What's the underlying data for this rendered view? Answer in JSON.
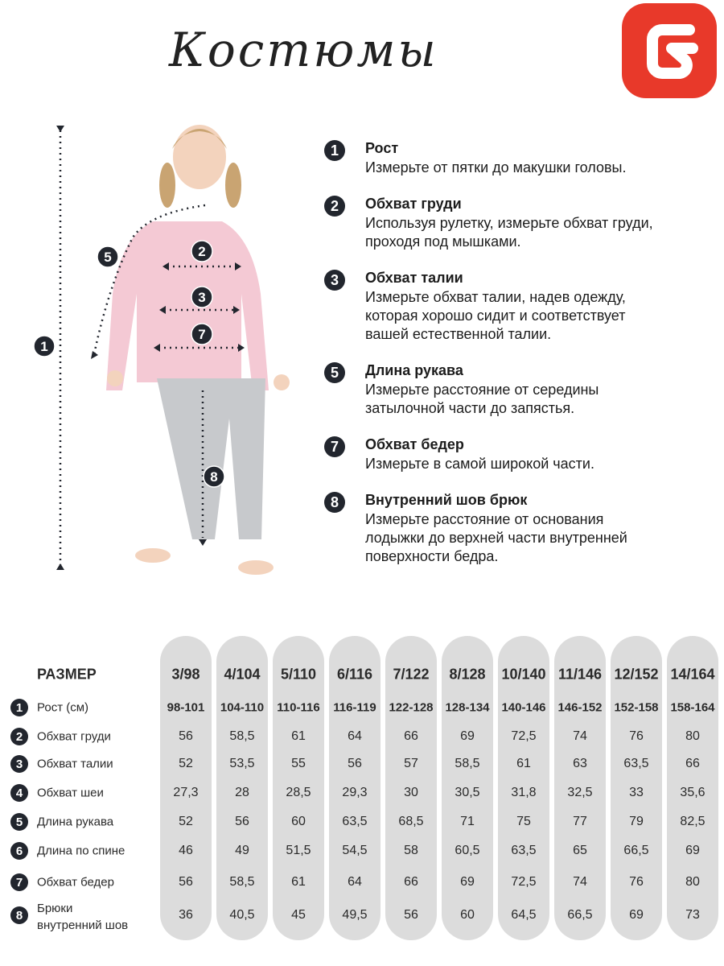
{
  "title": "Костюмы",
  "colors": {
    "brand": "#e8392a",
    "dark": "#22262e",
    "pill": "#dcdcdc",
    "shirt": "#f4c9d4",
    "pants": "#c7c9cc"
  },
  "figure_markers": [
    "1",
    "2",
    "3",
    "5",
    "7",
    "8"
  ],
  "instructions": [
    {
      "num": "1",
      "title": "Рост",
      "desc": "Измерьте от пятки до макушки головы."
    },
    {
      "num": "2",
      "title": "Обхват груди",
      "desc": "Используя рулетку, измерьте обхват груди,\nпроходя под мышками."
    },
    {
      "num": "3",
      "title": "Обхват талии",
      "desc": "Измерьте обхват талии, надев одежду,\nкоторая хорошо сидит и соответствует\nвашей естественной талии."
    },
    {
      "num": "5",
      "title": "Длина рукава",
      "desc": "Измерьте расстояние от середины\nзатылочной части до запястья."
    },
    {
      "num": "7",
      "title": "Обхват бедер",
      "desc": "Измерьте в самой широкой части."
    },
    {
      "num": "8",
      "title": "Внутренний шов брюк",
      "desc": "Измерьте расстояние от основания\nлодыжки до верхней части внутренней\nповерхности бедра."
    }
  ],
  "table": {
    "header_label": "РАЗМЕР",
    "sizes": [
      "3/98",
      "4/104",
      "5/110",
      "6/116",
      "7/122",
      "8/128",
      "10/140",
      "11/146",
      "12/152",
      "14/164"
    ],
    "rows": [
      {
        "num": "1",
        "label": "Рост (см)",
        "values": [
          "98-101",
          "104-110",
          "110-116",
          "116-119",
          "122-128",
          "128-134",
          "140-146",
          "146-152",
          "152-158",
          "158-164"
        ]
      },
      {
        "num": "2",
        "label": "Обхват груди",
        "values": [
          "56",
          "58,5",
          "61",
          "64",
          "66",
          "69",
          "72,5",
          "74",
          "76",
          "80"
        ]
      },
      {
        "num": "3",
        "label": "Обхват талии",
        "values": [
          "52",
          "53,5",
          "55",
          "56",
          "57",
          "58,5",
          "61",
          "63",
          "63,5",
          "66"
        ]
      },
      {
        "num": "4",
        "label": "Обхват шеи",
        "values": [
          "27,3",
          "28",
          "28,5",
          "29,3",
          "30",
          "30,5",
          "31,8",
          "32,5",
          "33",
          "35,6"
        ]
      },
      {
        "num": "5",
        "label": "Длина рукава",
        "values": [
          "52",
          "56",
          "60",
          "63,5",
          "68,5",
          "71",
          "75",
          "77",
          "79",
          "82,5"
        ]
      },
      {
        "num": "6",
        "label": "Длина по спине",
        "values": [
          "46",
          "49",
          "51,5",
          "54,5",
          "58",
          "60,5",
          "63,5",
          "65",
          "66,5",
          "69"
        ]
      },
      {
        "num": "7",
        "label": "Обхват бедер",
        "values": [
          "56",
          "58,5",
          "61",
          "64",
          "66",
          "69",
          "72,5",
          "74",
          "76",
          "80"
        ]
      },
      {
        "num": "8",
        "label": "Брюки\nвнутренний шов",
        "values": [
          "36",
          "40,5",
          "45",
          "49,5",
          "56",
          "60",
          "64,5",
          "66,5",
          "69",
          "73"
        ]
      }
    ]
  }
}
